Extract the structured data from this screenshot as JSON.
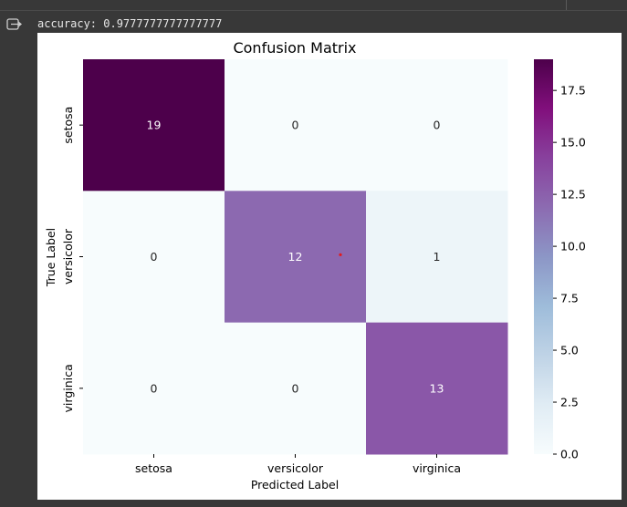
{
  "output": {
    "stdout_text": "accuracy: 0.9777777777777777",
    "icon": "output-redirect-icon"
  },
  "chart_data": {
    "type": "heatmap",
    "title": "Confusion Matrix",
    "xlabel": "Predicted Label",
    "ylabel": "True Label",
    "x_categories": [
      "setosa",
      "versicolor",
      "virginica"
    ],
    "y_categories": [
      "setosa",
      "versicolor",
      "virginica"
    ],
    "values": [
      [
        19,
        0,
        0
      ],
      [
        0,
        12,
        1
      ],
      [
        0,
        0,
        13
      ]
    ],
    "colormap": "BuPu",
    "vmin": 0,
    "vmax": 19,
    "colorbar_ticks": [
      0.0,
      2.5,
      5.0,
      7.5,
      10.0,
      12.5,
      15.0,
      17.5
    ],
    "colorbar_tick_labels": [
      "0.0",
      "2.5",
      "5.0",
      "7.5",
      "10.0",
      "12.5",
      "15.0",
      "17.5"
    ],
    "colors": {
      "zero": "#f7fcfd",
      "one": "#ebf4f8",
      "twelve": "#956ab1",
      "thirteen": "#8c5aa8",
      "nineteen": "#4d004b",
      "marker": "#e31a1c"
    }
  }
}
